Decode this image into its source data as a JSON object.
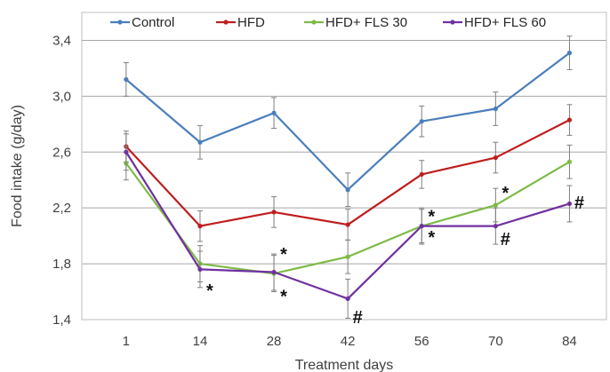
{
  "chart_data": {
    "type": "line",
    "xlabel": "Treatment days",
    "ylabel": "Food intake (g/day)",
    "categories": [
      "1",
      "14",
      "28",
      "42",
      "56",
      "70",
      "84"
    ],
    "ylim": [
      1.4,
      3.6
    ],
    "yticks": [
      "1,4",
      "1,8",
      "2,2",
      "2,6",
      "3,0",
      "3,4"
    ],
    "ytick_values": [
      1.4,
      1.8,
      2.2,
      2.6,
      3.0,
      3.4
    ],
    "grid": "horizontal",
    "legend_position": "top",
    "series": [
      {
        "name": "Control",
        "color": "#4a7ebb",
        "values": [
          3.12,
          2.67,
          2.88,
          2.33,
          2.82,
          2.91,
          3.31
        ],
        "errors": [
          0.12,
          0.12,
          0.11,
          0.12,
          0.11,
          0.12,
          0.12
        ]
      },
      {
        "name": "HFD",
        "color": "#be1e1e",
        "values": [
          2.64,
          2.07,
          2.17,
          2.08,
          2.44,
          2.56,
          2.83
        ],
        "errors": [
          0.11,
          0.11,
          0.11,
          0.11,
          0.1,
          0.11,
          0.11
        ]
      },
      {
        "name": "HFD+ FLS 30",
        "color": "#7dba46",
        "values": [
          2.52,
          1.8,
          1.73,
          1.85,
          2.07,
          2.22,
          2.53
        ],
        "errors": [
          0.12,
          0.13,
          0.13,
          0.12,
          0.12,
          0.12,
          0.12
        ]
      },
      {
        "name": "HFD+ FLS 60",
        "color": "#7030a0",
        "values": [
          2.6,
          1.76,
          1.74,
          1.55,
          2.07,
          2.07,
          2.23
        ],
        "errors": [
          0.13,
          0.13,
          0.13,
          0.14,
          0.13,
          0.13,
          0.13
        ]
      }
    ],
    "annotations": [
      {
        "text": "*",
        "x": "14",
        "y": 1.61
      },
      {
        "text": "*",
        "x": "28",
        "y": 1.87
      },
      {
        "text": "*",
        "x": "28",
        "y": 1.57
      },
      {
        "text": "#",
        "x": "42",
        "y": 1.42
      },
      {
        "text": "*",
        "x": "56",
        "y": 2.14
      },
      {
        "text": "*",
        "x": "56",
        "y": 1.99
      },
      {
        "text": "*",
        "x": "70",
        "y": 2.31
      },
      {
        "text": "#",
        "x": "70",
        "y": 1.98
      },
      {
        "text": "#",
        "x": "84",
        "y": 2.24
      }
    ]
  }
}
